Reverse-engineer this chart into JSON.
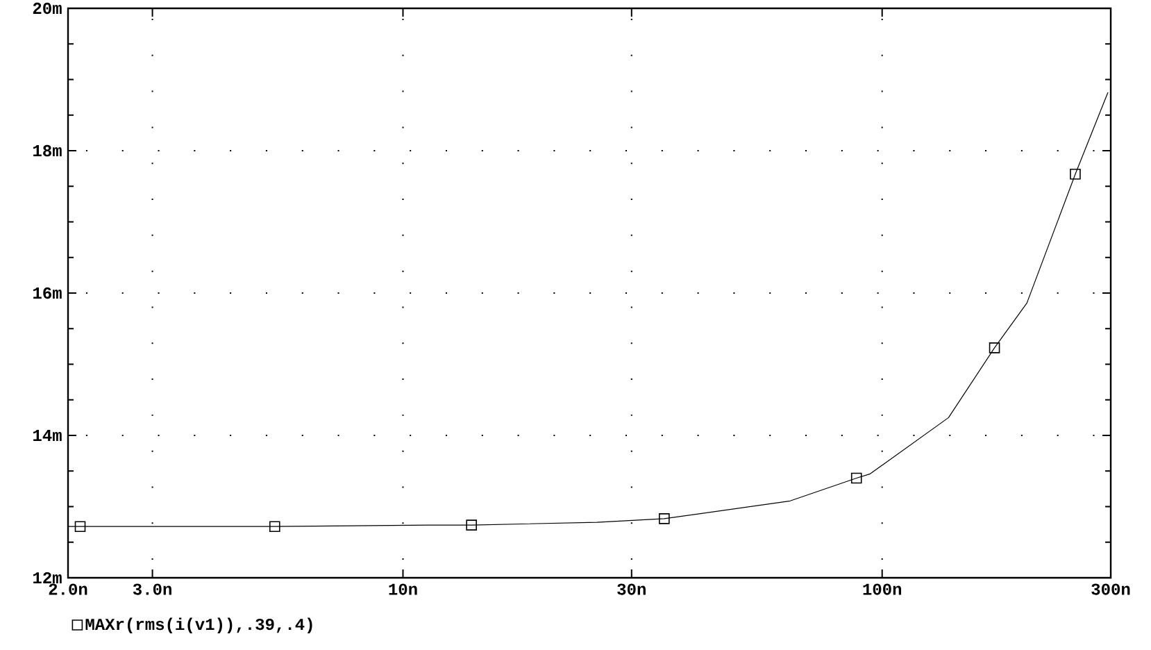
{
  "chart_data": {
    "type": "line",
    "x": [
      2.0,
      2.12,
      5.4,
      11.3,
      13.9,
      25.4,
      35.1,
      64.3,
      88.4,
      94.4,
      137.6,
      171.6,
      200.5,
      253,
      296
    ],
    "series": [
      {
        "color": "#000000",
        "values": [
          12.72,
          12.72,
          12.72,
          12.74,
          12.74,
          12.78,
          12.83,
          13.08,
          13.4,
          13.46,
          14.25,
          15.23,
          15.86,
          17.67,
          18.82
        ]
      },
      {
        "type": "scatter",
        "name": "MAXr(rms(i(v1)),.39,.4)",
        "color": "#000000",
        "marker": "square",
        "x": [
          2.12,
          5.4,
          13.9,
          35.1,
          88.4,
          171.6,
          253
        ],
        "values": [
          12.72,
          12.72,
          12.74,
          12.83,
          13.4,
          15.23,
          17.67
        ]
      }
    ],
    "log": "x",
    "xlim": [
      2,
      300
    ],
    "ylim": [
      12,
      20
    ],
    "xticks": [
      {
        "value": 2,
        "label": "2.0n"
      },
      {
        "value": 3,
        "label": "3.0n"
      },
      {
        "value": 10,
        "label": "10n"
      },
      {
        "value": 30,
        "label": "30n"
      },
      {
        "value": 100,
        "label": "100n"
      },
      {
        "value": 300,
        "label": "300n"
      }
    ],
    "yticks": [
      {
        "value": 12,
        "label": "12m"
      },
      {
        "value": 14,
        "label": "14m"
      },
      {
        "value": 16,
        "label": "16m"
      },
      {
        "value": 18,
        "label": "18m"
      },
      {
        "value": 20,
        "label": "20m"
      }
    ],
    "grid": true,
    "legend": "bottom left"
  }
}
